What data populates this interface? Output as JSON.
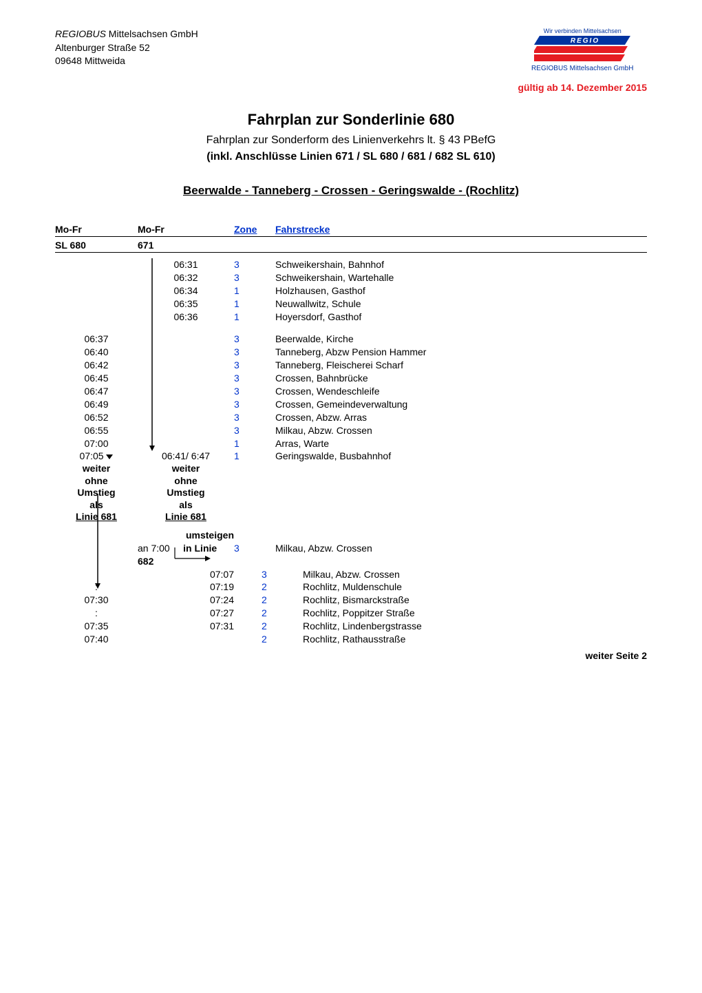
{
  "company": {
    "name_italic": "REGIOBUS",
    "name_rest": " Mittelsachsen GmbH",
    "street": "Altenburger Straße 52",
    "city": "09648 Mittweida"
  },
  "logo": {
    "top_text": "Wir verbinden Mittelsachsen",
    "word": "REGIO",
    "bottom_text": "REGIOBUS Mittelsachsen GmbH",
    "colors": {
      "blue": "#0033a0",
      "red": "#e51c23",
      "white": "#ffffff"
    }
  },
  "validity": "gültig ab 14. Dezember 2015",
  "title": "Fahrplan zur Sonderlinie 680",
  "subtitle": "Fahrplan zur Sonderform des Linienverkehrs lt. § 43 PBefG",
  "subtitle2": "(inkl. Anschlüsse Linien 671 / SL 680 / 681 / 682 SL 610)",
  "route_heading": "Beerwalde - Tanneberg - Crossen - Geringswalde - (Rochlitz)",
  "headers": {
    "col1": "Mo-Fr",
    "col2": "Mo-Fr",
    "zone": "Zone",
    "stop": "Fahrstrecke"
  },
  "subheaders": {
    "col1": "SL 680",
    "col2": "671"
  },
  "block671": [
    {
      "mid": "06:31",
      "zone": "3",
      "stop": "Schweikershain, Bahnhof"
    },
    {
      "mid": "06:32",
      "zone": "3",
      "stop": "Schweikershain, Wartehalle"
    },
    {
      "mid": "06:34",
      "zone": "1",
      "stop": "Holzhausen, Gasthof"
    },
    {
      "mid": "06:35",
      "zone": "1",
      "stop": "Neuwallwitz, Schule"
    },
    {
      "mid": "06:36",
      "zone": "1",
      "stop": "Hoyersdorf, Gasthof"
    }
  ],
  "block680": [
    {
      "left": "06:37",
      "zone": "3",
      "stop": "Beerwalde, Kirche"
    },
    {
      "left": "06:40",
      "zone": "3",
      "stop": "Tanneberg, Abzw Pension Hammer"
    },
    {
      "left": "06:42",
      "zone": "3",
      "stop": "Tanneberg, Fleischerei Scharf"
    },
    {
      "left": "06:45",
      "zone": "3",
      "stop": "Crossen, Bahnbrücke"
    },
    {
      "left": "06:47",
      "zone": "3",
      "stop": "Crossen, Wendeschleife"
    },
    {
      "left": "06:49",
      "zone": "3",
      "stop": "Crossen, Gemeindeverwaltung"
    },
    {
      "left": "06:52",
      "zone": "3",
      "stop": "Crossen, Abzw. Arras"
    },
    {
      "left": "06:55",
      "zone": "3",
      "stop": "Milkau, Abzw. Crossen"
    },
    {
      "left": "07:00",
      "zone": "1",
      "stop": "Arras, Warte"
    }
  ],
  "transfer_row": {
    "left": "07:05",
    "mid": "06:41/  6:47",
    "zone": "1",
    "stop": "Geringswalde, Busbahnhof"
  },
  "weiter_block": {
    "l1": "weiter",
    "l2": "ohne",
    "l3": "Umstieg",
    "l4": "als",
    "l5": "Linie 681"
  },
  "umsteigen_label": "umsteigen",
  "an_row": {
    "mid_prefix": "an 7:00",
    "mid_link": "in Linie 682",
    "zone": "3",
    "stop": "Milkau, Abzw. Crossen"
  },
  "block682": [
    {
      "left": "",
      "mid": "07:07",
      "zone": "3",
      "stop": "Milkau, Abzw. Crossen"
    },
    {
      "left": ":",
      "mid": "07:19",
      "zone": "2",
      "stop": "Rochlitz, Muldenschule"
    },
    {
      "left": "07:30",
      "mid": "07:24",
      "zone": "2",
      "stop": "Rochlitz, Bismarckstraße"
    },
    {
      "left": ":",
      "mid": "07:27",
      "zone": "2",
      "stop": "Rochlitz, Poppitzer Straße"
    },
    {
      "left": "07:35",
      "mid": "07:31",
      "zone": "2",
      "stop": "Rochlitz, Lindenbergstrasse"
    },
    {
      "left": "07:40",
      "mid": "",
      "zone": "2",
      "stop": "Rochlitz, Rathausstraße"
    }
  ],
  "footer_note": "weiter Seite 2",
  "style": {
    "zone_color": "#0033cc",
    "text_color": "#000000",
    "red": "#e51c23",
    "arrow_color": "#000000"
  }
}
